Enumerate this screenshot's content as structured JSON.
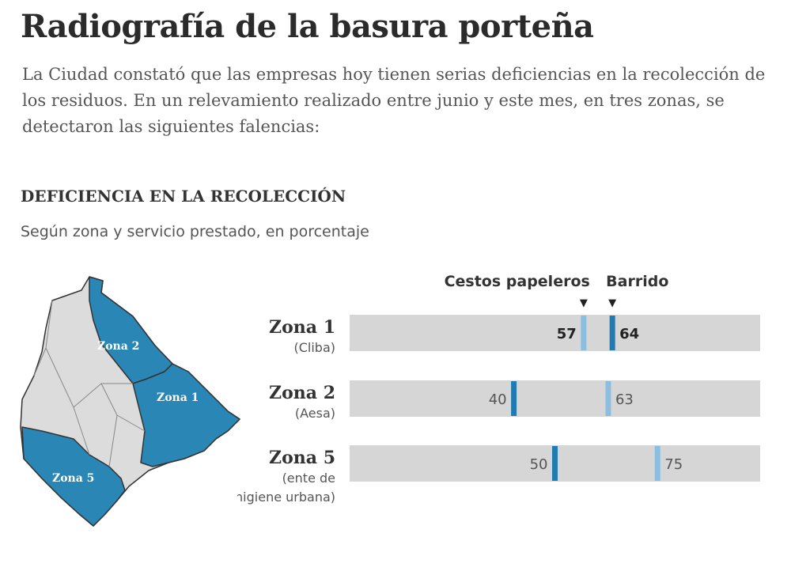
{
  "header": {
    "title": "Radiografía de la basura porteña",
    "intro": "La Ciudad constató que las empresas hoy tienen serias deficiencias en la recolección de los residuos. En un relevamiento realizado entre junio y este mes, en tres zonas, se detectaron las siguientes falencias:"
  },
  "section": {
    "title": "DEFICIENCIA EN LA RECOLECCIÓN",
    "subtitle": "Según zona y servicio prestado, en porcentaje"
  },
  "map": {
    "labels": [
      "Zona 2",
      "Zona 1",
      "Zona 5"
    ],
    "colors": {
      "highlight": "#2a86b5",
      "other": "#dcdcdc",
      "border": "#333333"
    }
  },
  "chart_data": {
    "type": "bar",
    "xlim": [
      0,
      100
    ],
    "legend": [
      {
        "name": "Cestos papeleros",
        "marker": "▼"
      },
      {
        "name": "Barrido",
        "marker": "▼"
      }
    ],
    "categories": [
      {
        "name": "Zona 1",
        "sub": [
          "(Cliba)"
        ]
      },
      {
        "name": "Zona 2",
        "sub": [
          "(Aesa)"
        ]
      },
      {
        "name": "Zona 5",
        "sub": [
          "(ente de",
          "higiene urbana)"
        ]
      }
    ],
    "series": [
      {
        "name": "Cestos papeleros",
        "values": [
          57,
          40,
          50
        ]
      },
      {
        "name": "Barrido",
        "values": [
          64,
          63,
          75
        ]
      }
    ],
    "colors": {
      "track": "#d6d6d6",
      "dark": "#1f7bb0",
      "light": "#8cbfdf"
    }
  }
}
